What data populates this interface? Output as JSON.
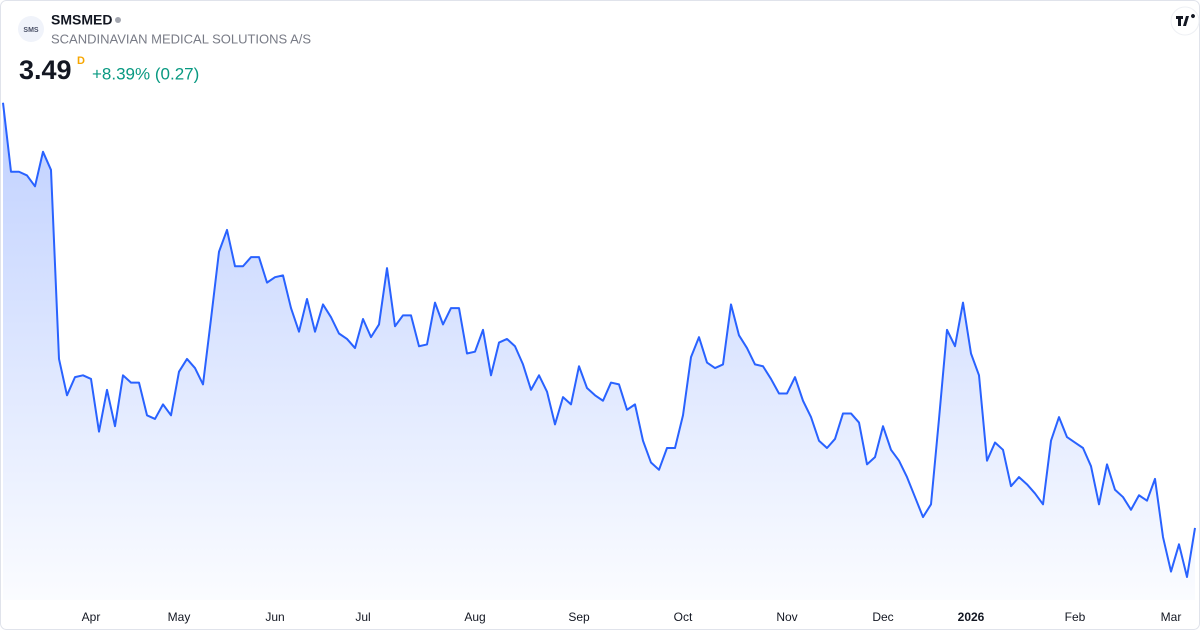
{
  "header": {
    "logo_text": "SMS",
    "symbol": "SMSMED",
    "name": "SCANDINAVIAN MEDICAL SOLUTIONS A/S",
    "price": "3.49",
    "interval": "D",
    "change": "+8.39% (0.27)"
  },
  "chart_data": {
    "type": "area",
    "color": "#2962ff",
    "ylim": [
      3.0,
      5.9
    ],
    "categories": [
      null,
      null,
      null,
      null,
      null,
      null,
      null,
      null,
      null,
      null,
      null,
      "Apr",
      null,
      null,
      null,
      null,
      null,
      null,
      null,
      null,
      null,
      null,
      "May",
      null,
      null,
      null,
      null,
      null,
      null,
      null,
      null,
      null,
      null,
      null,
      "Jun",
      null,
      null,
      null,
      null,
      null,
      null,
      null,
      null,
      null,
      null,
      "Jul",
      null,
      null,
      null,
      null,
      null,
      null,
      null,
      null,
      null,
      null,
      null,
      null,
      null,
      "Aug",
      null,
      null,
      null,
      null,
      null,
      null,
      null,
      null,
      null,
      null,
      null,
      null,
      "Sep",
      null,
      null,
      null,
      null,
      null,
      null,
      null,
      null,
      null,
      null,
      null,
      null,
      "Oct",
      null,
      null,
      null,
      null,
      null,
      null,
      null,
      null,
      null,
      null,
      null,
      null,
      "Nov",
      null,
      null,
      null,
      null,
      null,
      null,
      null,
      null,
      null,
      null,
      null,
      "Dec",
      null,
      null,
      null,
      null,
      null,
      null,
      null,
      null,
      null,
      null,
      "2026",
      null,
      null,
      null,
      null,
      null,
      null,
      null,
      null,
      null,
      null,
      null,
      null,
      "Feb",
      null,
      null,
      null,
      null,
      null,
      null,
      null,
      null,
      null,
      null,
      null,
      "Mar",
      null,
      null,
      null
    ],
    "values": [
      5.83,
      5.45,
      5.45,
      5.43,
      5.37,
      5.56,
      5.46,
      4.42,
      4.22,
      4.32,
      4.33,
      4.31,
      4.02,
      4.25,
      4.05,
      4.33,
      4.29,
      4.29,
      4.11,
      4.09,
      4.17,
      4.11,
      4.35,
      4.42,
      4.37,
      4.28,
      4.64,
      5.01,
      5.13,
      4.93,
      4.93,
      4.98,
      4.98,
      4.84,
      4.87,
      4.88,
      4.7,
      4.57,
      4.75,
      4.57,
      4.72,
      4.65,
      4.56,
      4.53,
      4.48,
      4.64,
      4.54,
      4.61,
      4.92,
      4.6,
      4.66,
      4.66,
      4.49,
      4.5,
      4.73,
      4.61,
      4.7,
      4.7,
      4.45,
      4.46,
      4.58,
      4.33,
      4.51,
      4.53,
      4.49,
      4.39,
      4.25,
      4.33,
      4.24,
      4.06,
      4.21,
      4.17,
      4.38,
      4.26,
      4.22,
      4.19,
      4.29,
      4.28,
      4.14,
      4.17,
      3.97,
      3.85,
      3.81,
      3.93,
      3.93,
      4.11,
      4.43,
      4.54,
      4.4,
      4.37,
      4.39,
      4.72,
      4.55,
      4.48,
      4.39,
      4.38,
      4.31,
      4.23,
      4.23,
      4.32,
      4.19,
      4.1,
      3.97,
      3.93,
      3.98,
      4.12,
      4.12,
      4.07,
      3.84,
      3.88,
      4.05,
      3.92,
      3.86,
      3.77,
      3.66,
      3.55,
      3.62,
      4.09,
      4.58,
      4.49,
      4.73,
      4.45,
      4.33,
      3.86,
      3.96,
      3.92,
      3.72,
      3.77,
      3.73,
      3.68,
      3.62,
      3.97,
      4.1,
      3.99,
      3.96,
      3.93,
      3.83,
      3.62,
      3.84,
      3.7,
      3.66,
      3.59,
      3.67,
      3.64,
      3.76,
      3.44,
      3.25,
      3.4,
      3.22,
      3.49
    ]
  }
}
